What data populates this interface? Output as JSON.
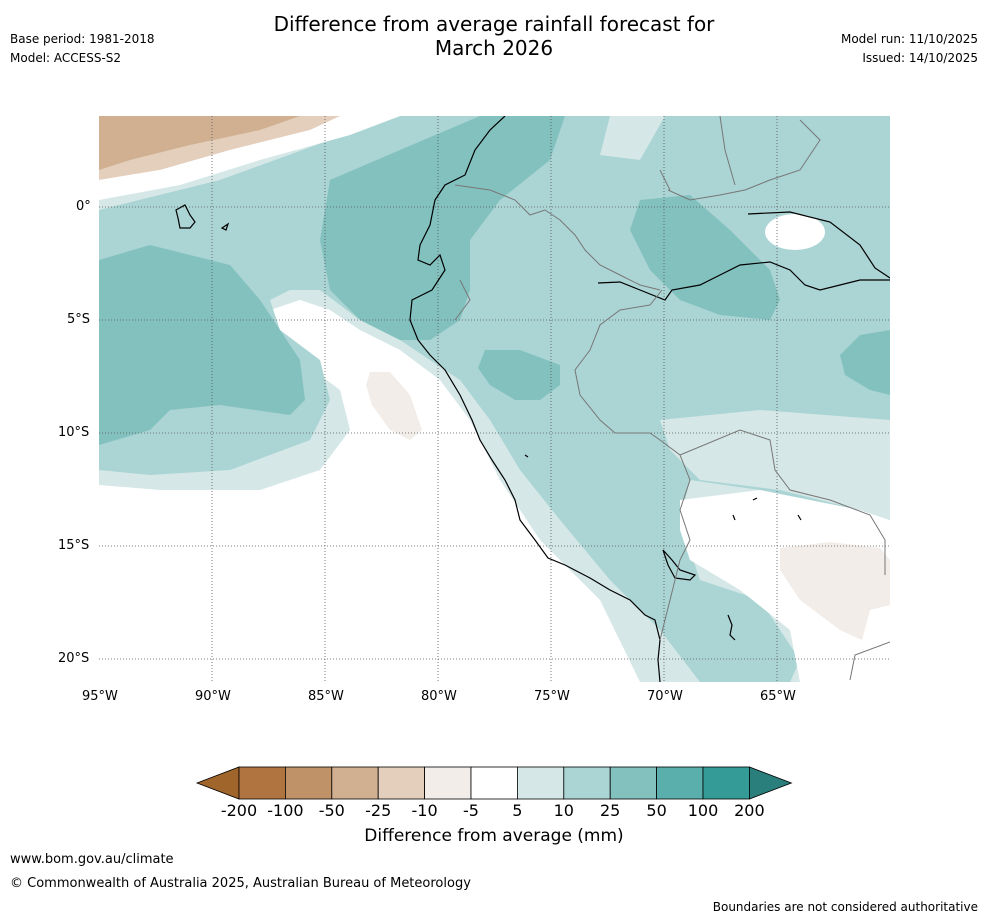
{
  "header": {
    "title_line1": "Difference from average rainfall forecast for",
    "title_line2": "March 2026",
    "base_period": "Base period: 1981-2018",
    "model": "Model: ACCESS-S2",
    "model_run": "Model run: 11/10/2025",
    "issued": "Issued: 14/10/2025"
  },
  "map": {
    "lat_labels": [
      "0°",
      "5°S",
      "10°S",
      "15°S",
      "20°S"
    ],
    "lon_labels": [
      "95°W",
      "90°W",
      "85°W",
      "80°W",
      "75°W",
      "70°W",
      "65°W"
    ],
    "extent": {
      "lon_min": -95,
      "lon_max": -60,
      "lat_min": -21,
      "lat_max": 4
    },
    "gridline_style": "dotted"
  },
  "colorbar": {
    "title": "Difference from average (mm)",
    "labels": [
      "-200",
      "-100",
      "-50",
      "-25",
      "-10",
      "-5",
      "5",
      "10",
      "25",
      "50",
      "100",
      "200"
    ],
    "colors": [
      "#a0652b",
      "#b07440",
      "#c09268",
      "#d1b091",
      "#e3cfbc",
      "#f2ede8",
      "#ffffff",
      "#d5e8e7",
      "#abd4d4",
      "#83c1bf",
      "#5aaeab",
      "#349b97",
      "#2a7f7c"
    ]
  },
  "footer": {
    "url": "www.bom.gov.au/climate",
    "copyright": "© Commonwealth of Australia 2025, Australian Bureau of Meteorology",
    "disclaimer": "Boundaries are not considered authoritative"
  }
}
